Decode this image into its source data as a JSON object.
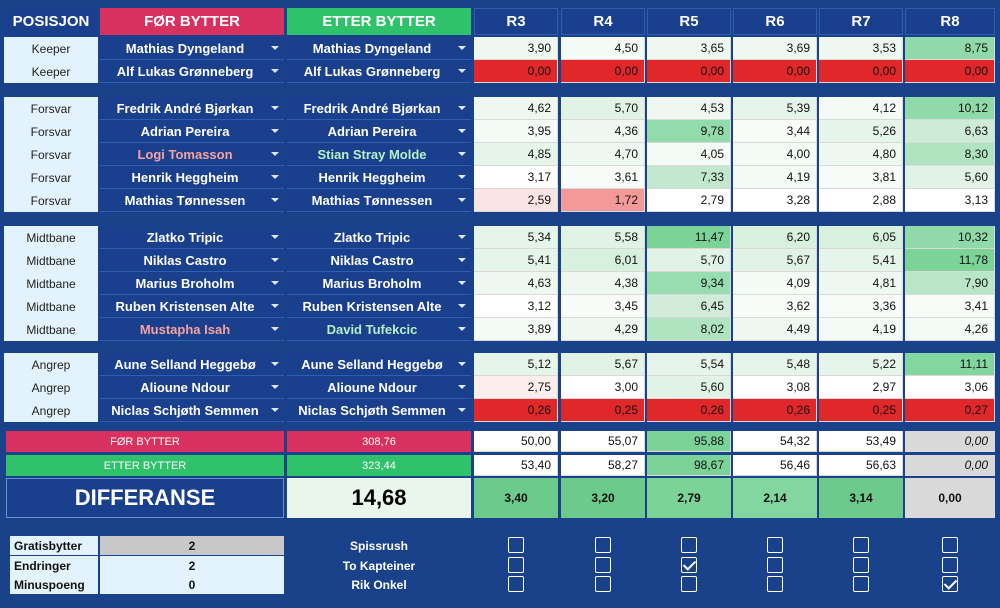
{
  "header": {
    "pos": "POSISJON",
    "for": "FØR BYTTER",
    "etter": "ETTER BYTTER",
    "rounds": [
      "R3",
      "R4",
      "R5",
      "R6",
      "R7",
      "R8"
    ]
  },
  "groups": [
    {
      "rows": [
        {
          "pos": "Keeper",
          "before": "Mathias Dyngeland",
          "after": "Mathias Dyngeland",
          "vals": [
            "3,90",
            "4,50",
            "3,65",
            "3,69",
            "3,53",
            "8,75"
          ],
          "bg": [
            "#eef8f0",
            "#f4faf5",
            "#eef8f0",
            "#eef8f0",
            "#eef8f0",
            "#8fdaa8"
          ]
        },
        {
          "pos": "Keeper",
          "before": "Alf Lukas Grønneberg",
          "after": "Alf Lukas Grønneberg",
          "vals": [
            "0,00",
            "0,00",
            "0,00",
            "0,00",
            "0,00",
            "0,00"
          ],
          "bg": [
            "#e0272a",
            "#e0272a",
            "#e0272a",
            "#e0272a",
            "#e0272a",
            "#e0272a"
          ]
        }
      ]
    },
    {
      "rows": [
        {
          "pos": "Forsvar",
          "before": "Fredrik André Bjørkan",
          "after": "Fredrik André Bjørkan",
          "vals": [
            "4,62",
            "5,70",
            "4,53",
            "5,39",
            "4,12",
            "10,12"
          ],
          "bg": [
            "#eef8f0",
            "#e0f3e5",
            "#eef8f0",
            "#e6f5ea",
            "#f4faf5",
            "#8fdaa8"
          ]
        },
        {
          "pos": "Forsvar",
          "before": "Adrian Pereira",
          "after": "Adrian Pereira",
          "vals": [
            "3,95",
            "4,36",
            "9,78",
            "3,44",
            "5,26",
            "6,63"
          ],
          "bg": [
            "#f4faf5",
            "#eef8f0",
            "#92dbab",
            "#f7fcf8",
            "#e6f5ea",
            "#cdebd6"
          ]
        },
        {
          "pos": "Forsvar",
          "before": "Logi Tomasson",
          "after": "Stian Stray Molde",
          "beforeColor": "red",
          "afterColor": "green",
          "vals": [
            "4,85",
            "4,70",
            "4,05",
            "4,00",
            "4,80",
            "8,30"
          ],
          "bg": [
            "#e6f5ea",
            "#eef8f0",
            "#f4faf5",
            "#f4faf5",
            "#eef8f0",
            "#b0e4c0"
          ]
        },
        {
          "pos": "Forsvar",
          "before": "Henrik Heggheim",
          "after": "Henrik Heggheim",
          "vals": [
            "3,17",
            "3,61",
            "7,33",
            "4,19",
            "3,81",
            "5,60"
          ],
          "bg": [
            "#ffffff",
            "#f7fcf8",
            "#c2e8cd",
            "#f4faf5",
            "#f7fcf8",
            "#e0f3e5"
          ]
        },
        {
          "pos": "Forsvar",
          "before": "Mathias Tønnessen",
          "after": "Mathias Tønnessen",
          "vals": [
            "2,59",
            "1,72",
            "2,79",
            "3,28",
            "2,88",
            "3,13"
          ],
          "bg": [
            "#fce4e4",
            "#f39a98",
            "#ffffff",
            "#ffffff",
            "#ffffff",
            "#ffffff"
          ]
        }
      ]
    },
    {
      "rows": [
        {
          "pos": "Midtbane",
          "before": "Zlatko Tripic",
          "after": "Zlatko Tripic",
          "vals": [
            "5,34",
            "5,58",
            "11,47",
            "6,20",
            "6,05",
            "10,32"
          ],
          "bg": [
            "#e6f5ea",
            "#e0f3e5",
            "#7bd398",
            "#d8f0de",
            "#d8f0de",
            "#8fdaa8"
          ]
        },
        {
          "pos": "Midtbane",
          "before": "Niklas Castro",
          "after": "Niklas Castro",
          "vals": [
            "5,41",
            "6,01",
            "5,70",
            "5,67",
            "5,41",
            "11,78"
          ],
          "bg": [
            "#e6f5ea",
            "#d8f0de",
            "#e0f3e5",
            "#e0f3e5",
            "#e6f5ea",
            "#7bd398"
          ]
        },
        {
          "pos": "Midtbane",
          "before": "Marius Broholm",
          "after": "Marius Broholm",
          "vals": [
            "4,63",
            "4,38",
            "9,34",
            "4,09",
            "4,81",
            "7,90"
          ],
          "bg": [
            "#eef8f0",
            "#eef8f0",
            "#98ddb0",
            "#f4faf5",
            "#eef8f0",
            "#b8e6c6"
          ]
        },
        {
          "pos": "Midtbane",
          "before": "Ruben Kristensen Alte",
          "after": "Ruben Kristensen Alte",
          "vals": [
            "3,12",
            "3,45",
            "6,45",
            "3,62",
            "3,36",
            "3,41"
          ],
          "bg": [
            "#ffffff",
            "#f7fcf8",
            "#d0ecd8",
            "#f7fcf8",
            "#f7fcf8",
            "#f7fcf8"
          ]
        },
        {
          "pos": "Midtbane",
          "before": "Mustapha Isah",
          "after": "David Tufekcic",
          "beforeColor": "red",
          "afterColor": "green",
          "vals": [
            "3,89",
            "4,29",
            "8,02",
            "4,49",
            "4,19",
            "4,26"
          ],
          "bg": [
            "#f4faf5",
            "#eef8f0",
            "#b0e4c0",
            "#eef8f0",
            "#f4faf5",
            "#f4faf5"
          ]
        }
      ]
    },
    {
      "rows": [
        {
          "pos": "Angrep",
          "before": "Aune Selland Heggebø",
          "after": "Aune Selland Heggebø",
          "vals": [
            "5,12",
            "5,67",
            "5,54",
            "5,48",
            "5,22",
            "11,11"
          ],
          "bg": [
            "#e6f5ea",
            "#e0f3e5",
            "#e6f5ea",
            "#e6f5ea",
            "#e6f5ea",
            "#84d6a0"
          ]
        },
        {
          "pos": "Angrep",
          "before": "Alioune Ndour",
          "after": "Alioune Ndour",
          "vals": [
            "2,75",
            "3,00",
            "5,60",
            "3,08",
            "2,97",
            "3,06"
          ],
          "bg": [
            "#fdeeee",
            "#ffffff",
            "#e0f3e5",
            "#ffffff",
            "#ffffff",
            "#ffffff"
          ]
        },
        {
          "pos": "Angrep",
          "before": "Niclas Schjøth Semmen",
          "after": "Niclas Schjøth Semmen",
          "vals": [
            "0,26",
            "0,25",
            "0,26",
            "0,26",
            "0,25",
            "0,27"
          ],
          "bg": [
            "#e0272a",
            "#e0272a",
            "#e0272a",
            "#e0272a",
            "#e0272a",
            "#e0272a"
          ]
        }
      ]
    }
  ],
  "summary": {
    "for_label": "FØR BYTTER",
    "for_total": "308,76",
    "for_vals": [
      "50,00",
      "55,07",
      "95,88",
      "54,32",
      "53,49",
      "0,00"
    ],
    "for_bg": [
      "#ffffff",
      "#ffffff",
      "#7bd398",
      "#ffffff",
      "#ffffff",
      "#d9d9d9"
    ],
    "etter_label": "ETTER BYTTER",
    "etter_total": "323,44",
    "etter_vals": [
      "53,40",
      "58,27",
      "98,67",
      "56,46",
      "56,63",
      "0,00"
    ],
    "etter_bg": [
      "#ffffff",
      "#ffffff",
      "#7bd398",
      "#ffffff",
      "#ffffff",
      "#d9d9d9"
    ],
    "diff_label": "DIFFERANSE",
    "diff_total": "14,68",
    "diff_vals": [
      "3,40",
      "3,20",
      "2,79",
      "2,14",
      "3,14",
      "0,00"
    ],
    "diff_bg": [
      "#6ccb8c",
      "#6ccb8c",
      "#7bd398",
      "#84d6a0",
      "#6ccb8c",
      "#d9d9d9"
    ]
  },
  "bottom": {
    "labels": [
      "Gratisbytter",
      "Endringer",
      "Minuspoeng"
    ],
    "values": [
      "2",
      "2",
      "0"
    ],
    "options": [
      "Spissrush",
      "To Kapteiner",
      "Rik Onkel"
    ],
    "checks": [
      [
        false,
        false,
        false,
        false,
        false,
        false
      ],
      [
        false,
        false,
        true,
        false,
        false,
        false
      ],
      [
        false,
        false,
        false,
        false,
        false,
        true
      ]
    ]
  },
  "colors": {
    "header_blue": "#1a3f8c",
    "accent_red": "#d8305f",
    "accent_green": "#30c26a",
    "background": "#19428a"
  }
}
